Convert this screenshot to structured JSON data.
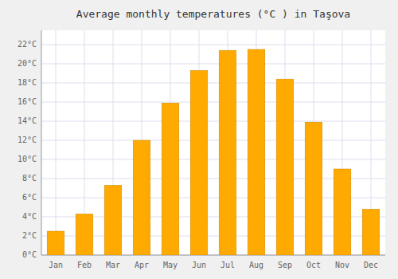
{
  "chart_data": {
    "type": "bar",
    "title": "Average monthly temperatures (°C ) in Taşova",
    "categories": [
      "Jan",
      "Feb",
      "Mar",
      "Apr",
      "May",
      "Jun",
      "Jul",
      "Aug",
      "Sep",
      "Oct",
      "Nov",
      "Dec"
    ],
    "values": [
      2.5,
      4.3,
      7.3,
      12.0,
      15.9,
      19.3,
      21.4,
      21.5,
      18.4,
      13.9,
      9.0,
      4.8
    ],
    "color": "#FFAA00",
    "ylim": [
      0,
      23.5
    ],
    "yticks": [
      {
        "value": 0,
        "label": "0°C"
      },
      {
        "value": 2,
        "label": "2°C"
      },
      {
        "value": 4,
        "label": "4°C"
      },
      {
        "value": 6,
        "label": "6°C"
      },
      {
        "value": 8,
        "label": "8°C"
      },
      {
        "value": 10,
        "label": "10°C"
      },
      {
        "value": 12,
        "label": "12°C"
      },
      {
        "value": 14,
        "label": "14°C"
      },
      {
        "value": 16,
        "label": "16°C"
      },
      {
        "value": 18,
        "label": "18°C"
      },
      {
        "value": 20,
        "label": "20°C"
      },
      {
        "value": 22,
        "label": "22°C"
      }
    ],
    "grid": true
  }
}
